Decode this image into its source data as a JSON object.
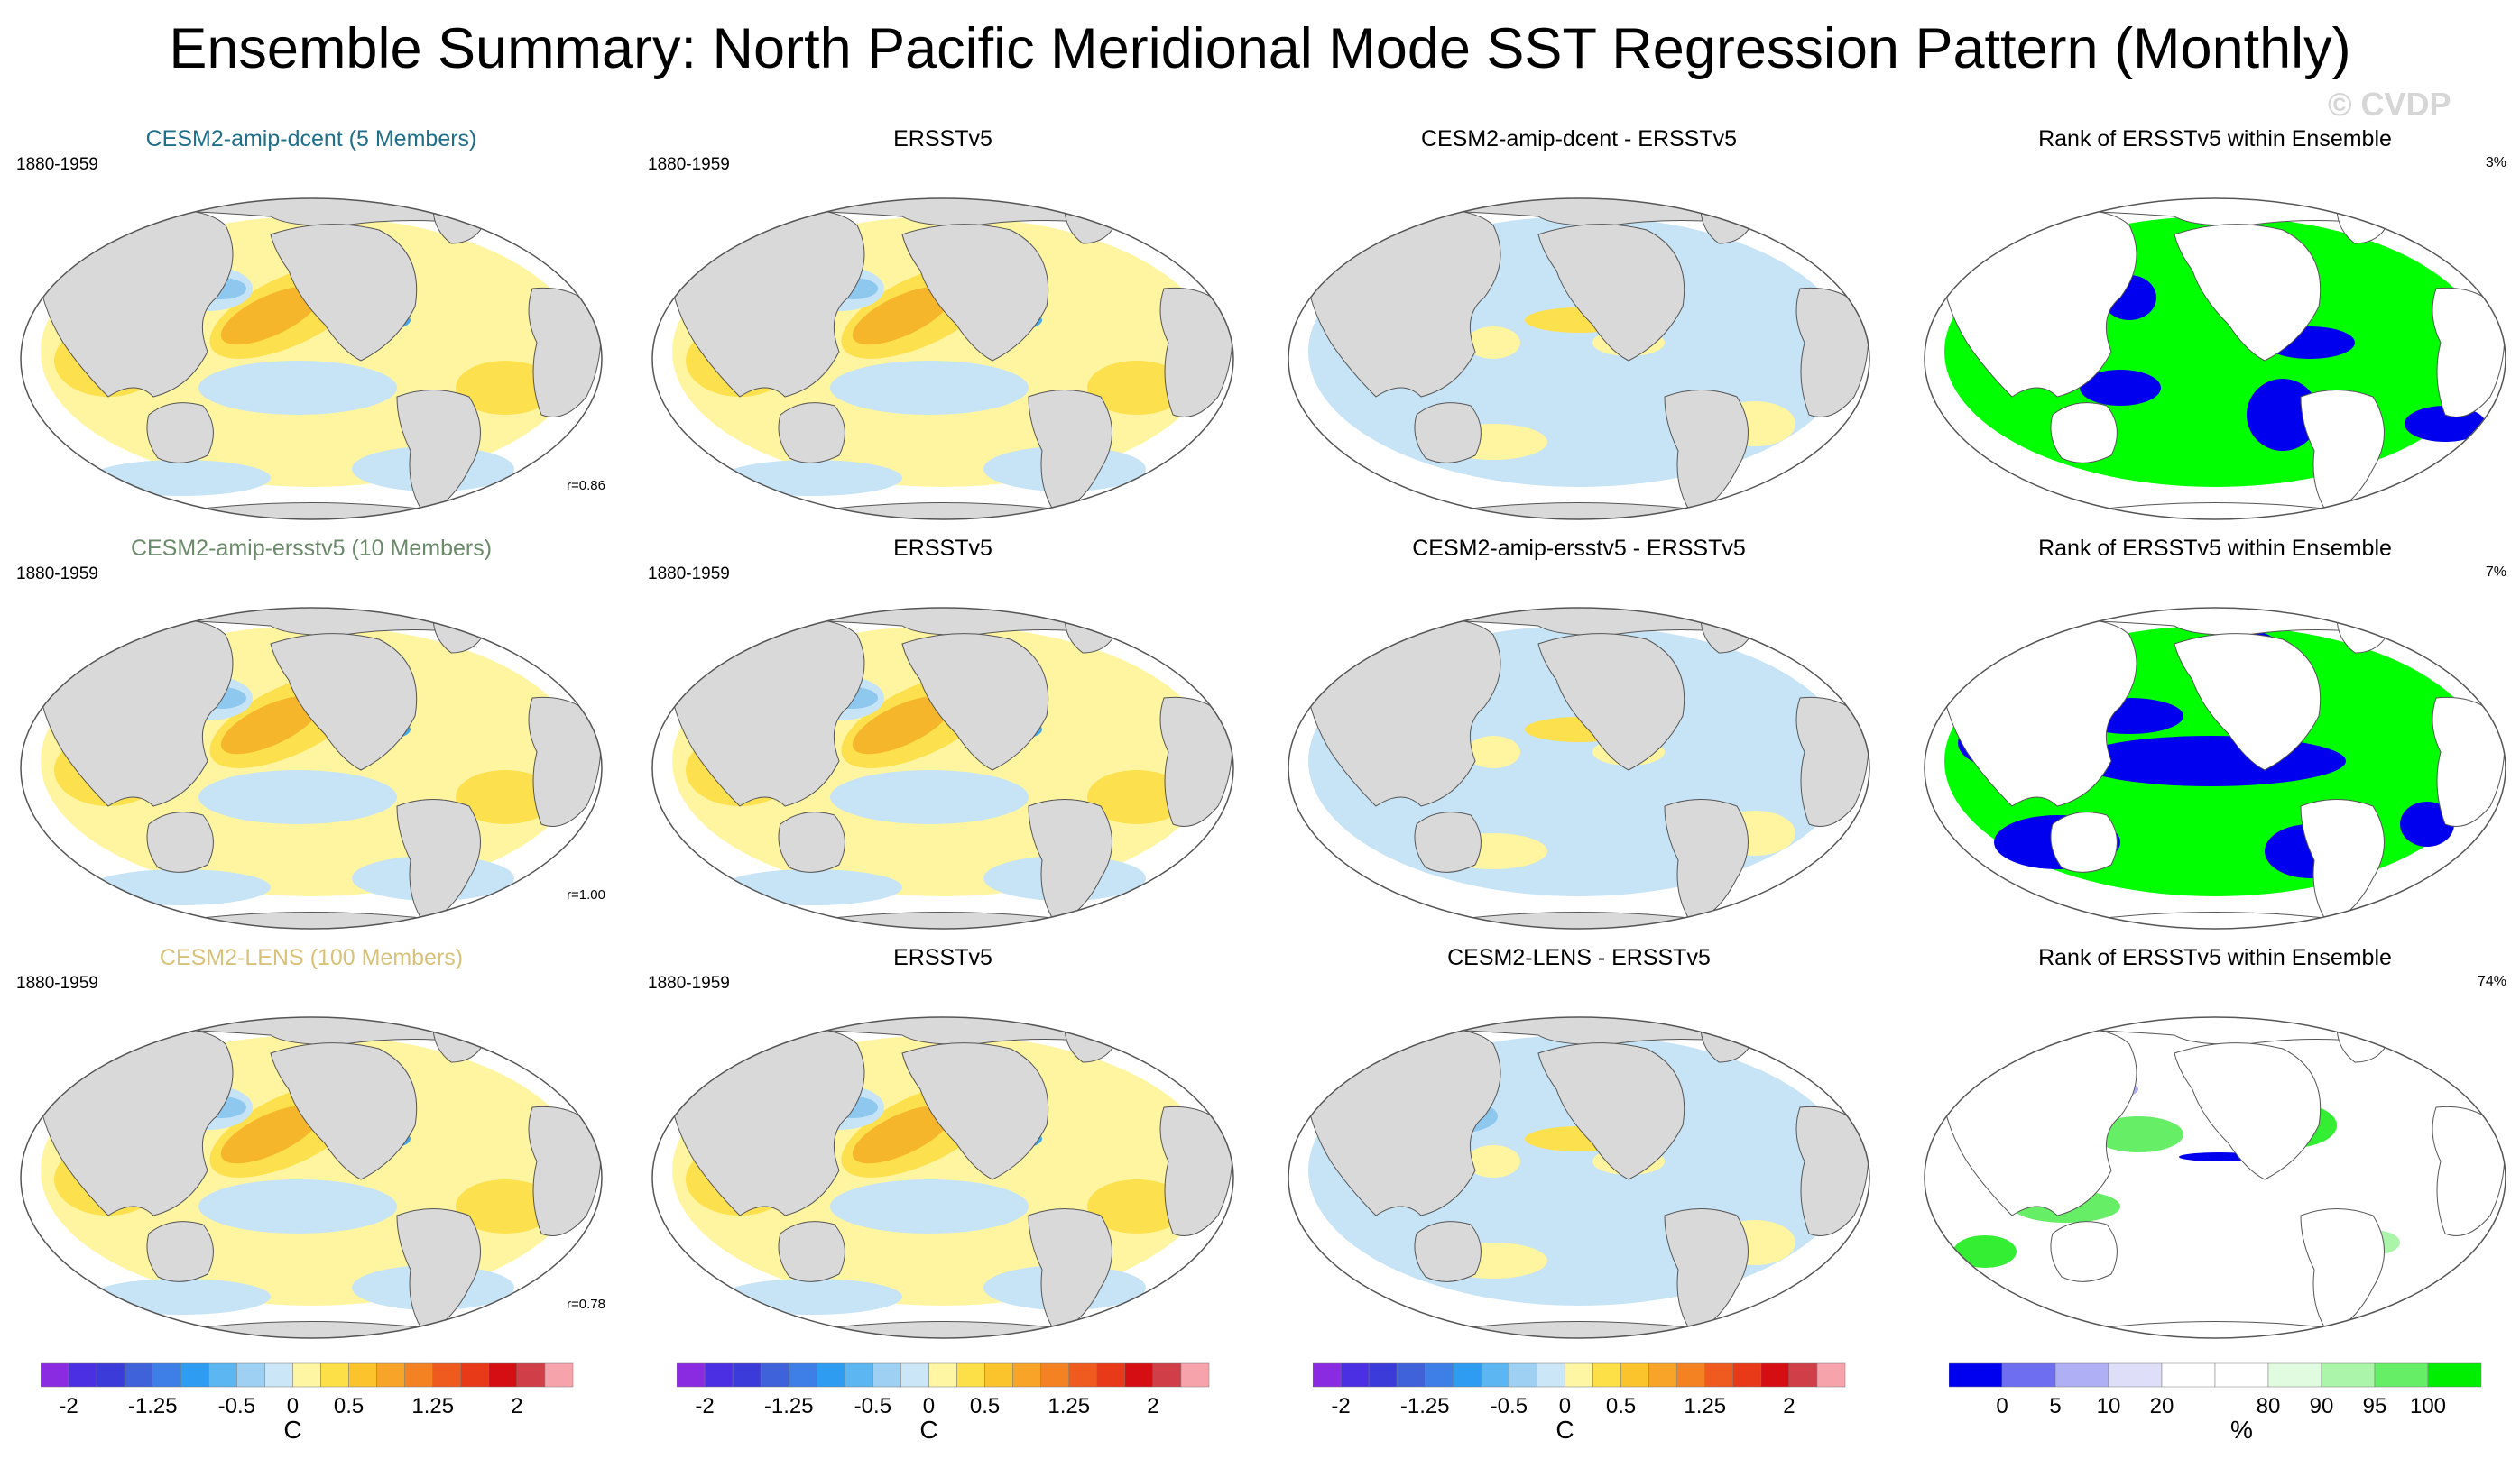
{
  "title": "Ensemble Summary: North Pacific Meridional Mode SST Regression Pattern (Monthly)",
  "watermark": "© CVDP",
  "colors": {
    "ocean_pos1": "#fff5a0",
    "ocean_pos2": "#fde04d",
    "ocean_pos3": "#f6b62c",
    "ocean_neg1": "#c6e4f6",
    "ocean_neg2": "#8ec8ef",
    "ocean_neg3": "#45a9ea",
    "land": "#d9d9d9",
    "rank_high": "#00ff00",
    "rank_low": "#0000ee"
  },
  "rows": [
    {
      "model": {
        "title": "CESM2-amip-dcent (5 Members)",
        "title_color": "#1f6f8b",
        "period": "1880-1959",
        "corr": "r=0.86"
      },
      "obs": {
        "title": "ERSSTv5",
        "period": "1880-1959"
      },
      "diff": {
        "title": "CESM2-amip-dcent - ERSSTv5"
      },
      "rank": {
        "title": "Rank of ERSSTv5 within Ensemble",
        "pct": "3%"
      }
    },
    {
      "model": {
        "title": "CESM2-amip-ersstv5 (10 Members)",
        "title_color": "#6a8a6a",
        "period": "1880-1959",
        "corr": "r=1.00"
      },
      "obs": {
        "title": "ERSSTv5",
        "period": "1880-1959"
      },
      "diff": {
        "title": "CESM2-amip-ersstv5 - ERSSTv5"
      },
      "rank": {
        "title": "Rank of ERSSTv5 within Ensemble",
        "pct": "7%"
      }
    },
    {
      "model": {
        "title": "CESM2-LENS (100 Members)",
        "title_color": "#d8c27a",
        "period": "1880-1959",
        "corr": "r=0.78"
      },
      "obs": {
        "title": "ERSSTv5",
        "period": "1880-1959"
      },
      "diff": {
        "title": "CESM2-LENS - ERSSTv5"
      },
      "rank": {
        "title": "Rank of ERSSTv5 within Ensemble",
        "pct": "74%"
      }
    }
  ],
  "colorbars": {
    "sst": {
      "unit": "C",
      "ticks": [
        "-2",
        "-1.25",
        "-0.5",
        "0",
        "0.5",
        "1.25",
        "2"
      ],
      "colors": [
        "#8a2be2",
        "#4b2fe3",
        "#3b3bd9",
        "#3f62db",
        "#3d7fe6",
        "#2e9cf0",
        "#5bb6f1",
        "#9dd0f2",
        "#cbe6f6",
        "#fff6a3",
        "#fde048",
        "#fbc42d",
        "#f7a428",
        "#f48223",
        "#ef5a1e",
        "#e83a18",
        "#d50e13",
        "#d03f48",
        "#f7a3ac"
      ]
    },
    "rank": {
      "unit": "%",
      "ticks": [
        "0",
        "5",
        "10",
        "20",
        "80",
        "90",
        "95",
        "100"
      ],
      "colors": [
        "#0000f0",
        "#6e6ef0",
        "#afaff5",
        "#dedef8",
        "#ffffff",
        "#ffffff",
        "#e1fbe1",
        "#aaf5aa",
        "#66ee66",
        "#00ee00"
      ]
    }
  }
}
